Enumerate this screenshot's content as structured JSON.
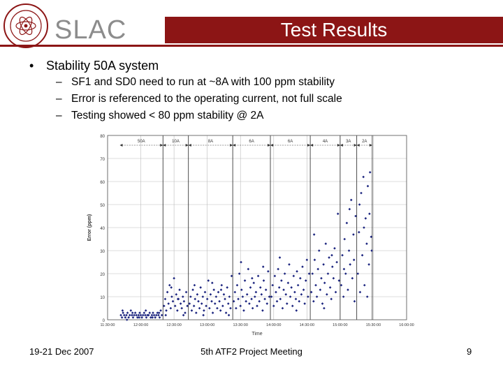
{
  "header": {
    "logo_text": "SLAC",
    "seal_text": "STANFORD LINEAR ACCELERATOR CENTER",
    "title": "Test Results",
    "brand_color": "#8c1515"
  },
  "body": {
    "bullet": "Stability 50A system",
    "subbullets": [
      "SF1 and SD0 need to run at ~8A with 100 ppm stability",
      "Error is referenced to the operating current, not full scale",
      "Testing showed < 80 ppm stability @ 2A"
    ]
  },
  "chart_data": {
    "type": "scatter",
    "xlabel": "Time",
    "ylabel": "Error (ppm)",
    "ylim": [
      0,
      80
    ],
    "xlim": [
      "11:30:00",
      "16:00:00"
    ],
    "yticks": [
      0,
      10,
      20,
      30,
      40,
      50,
      60,
      70,
      80
    ],
    "xticks": [
      "11:30:00",
      "12:00:00",
      "12:30:00",
      "13:00:00",
      "13:30:00",
      "14:00:00",
      "14:30:00",
      "15:00:00",
      "15:30:00",
      "16:00:00"
    ],
    "grid": true,
    "marker_color": "#1a237e",
    "segments": [
      {
        "label": "50A",
        "start": "11:41:00",
        "end": "12:20:00"
      },
      {
        "label": "10A",
        "start": "12:20:00",
        "end": "12:43:00"
      },
      {
        "label": "8A",
        "start": "12:43:00",
        "end": "13:23:00"
      },
      {
        "label": "6A",
        "start": "13:23:00",
        "end": "13:57:00"
      },
      {
        "label": "6A",
        "start": "13:57:00",
        "end": "14:33:00"
      },
      {
        "label": "4A",
        "start": "14:33:00",
        "end": "15:00:00"
      },
      {
        "label": "3A",
        "start": "15:00:00",
        "end": "15:15:00"
      },
      {
        "label": "2A",
        "start": "15:15:00",
        "end": "15:29:00"
      }
    ],
    "points": [
      [
        "11:42:00",
        2
      ],
      [
        "11:43:00",
        1
      ],
      [
        "11:44:00",
        3
      ],
      [
        "11:45:00",
        2
      ],
      [
        "11:46:00",
        1
      ],
      [
        "11:47:00",
        2
      ],
      [
        "11:48:00",
        3
      ],
      [
        "11:49:00",
        1
      ],
      [
        "11:50:00",
        2
      ],
      [
        "11:51:00",
        4
      ],
      [
        "11:52:00",
        2
      ],
      [
        "11:53:00",
        1
      ],
      [
        "11:54:00",
        2
      ],
      [
        "11:55:00",
        3
      ],
      [
        "11:56:00",
        2
      ],
      [
        "11:57:00",
        1
      ],
      [
        "11:58:00",
        2
      ],
      [
        "11:59:00",
        3
      ],
      [
        "12:00:00",
        2
      ],
      [
        "12:01:00",
        1
      ],
      [
        "12:02:00",
        2
      ],
      [
        "12:03:00",
        3
      ],
      [
        "12:04:00",
        2
      ],
      [
        "12:05:00",
        1
      ],
      [
        "12:06:00",
        2
      ],
      [
        "12:07:00",
        2
      ],
      [
        "12:08:00",
        3
      ],
      [
        "12:09:00",
        1
      ],
      [
        "12:10:00",
        2
      ],
      [
        "12:11:00",
        3
      ],
      [
        "12:12:00",
        2
      ],
      [
        "12:13:00",
        1
      ],
      [
        "12:14:00",
        2
      ],
      [
        "12:15:00",
        3
      ],
      [
        "12:16:00",
        2
      ],
      [
        "12:17:00",
        1
      ],
      [
        "12:18:00",
        4
      ],
      [
        "12:19:00",
        2
      ],
      [
        "11:43:30",
        4
      ],
      [
        "11:47:30",
        0
      ],
      [
        "11:52:30",
        3
      ],
      [
        "11:58:30",
        1
      ],
      [
        "12:04:30",
        4
      ],
      [
        "12:10:30",
        1
      ],
      [
        "12:16:30",
        3
      ],
      [
        "12:21:00",
        6
      ],
      [
        "12:22:00",
        9
      ],
      [
        "12:23:00",
        4
      ],
      [
        "12:24:00",
        12
      ],
      [
        "12:25:00",
        7
      ],
      [
        "12:26:00",
        15
      ],
      [
        "12:27:00",
        5
      ],
      [
        "12:28:00",
        10
      ],
      [
        "12:29:00",
        8
      ],
      [
        "12:30:00",
        18
      ],
      [
        "12:31:00",
        6
      ],
      [
        "12:32:00",
        11
      ],
      [
        "12:33:00",
        4
      ],
      [
        "12:34:00",
        9
      ],
      [
        "12:35:00",
        13
      ],
      [
        "12:36:00",
        7
      ],
      [
        "12:37:00",
        5
      ],
      [
        "12:38:00",
        10
      ],
      [
        "12:39:00",
        8
      ],
      [
        "12:40:00",
        3
      ],
      [
        "12:41:00",
        12
      ],
      [
        "12:42:00",
        6
      ],
      [
        "12:22:30",
        2
      ],
      [
        "12:27:30",
        14
      ],
      [
        "12:33:30",
        9
      ],
      [
        "12:38:30",
        2
      ],
      [
        "12:44:00",
        7
      ],
      [
        "12:45:00",
        10
      ],
      [
        "12:46:00",
        4
      ],
      [
        "12:47:00",
        13
      ],
      [
        "12:48:00",
        6
      ],
      [
        "12:49:00",
        9
      ],
      [
        "12:50:00",
        3
      ],
      [
        "12:51:00",
        11
      ],
      [
        "12:52:00",
        8
      ],
      [
        "12:53:00",
        5
      ],
      [
        "12:54:00",
        14
      ],
      [
        "12:55:00",
        7
      ],
      [
        "12:56:00",
        10
      ],
      [
        "12:57:00",
        4
      ],
      [
        "12:58:00",
        12
      ],
      [
        "12:59:00",
        6
      ],
      [
        "13:00:00",
        9
      ],
      [
        "13:01:00",
        17
      ],
      [
        "13:02:00",
        5
      ],
      [
        "13:03:00",
        11
      ],
      [
        "13:04:00",
        8
      ],
      [
        "13:05:00",
        3
      ],
      [
        "13:06:00",
        13
      ],
      [
        "13:07:00",
        7
      ],
      [
        "13:08:00",
        10
      ],
      [
        "13:09:00",
        5
      ],
      [
        "13:10:00",
        12
      ],
      [
        "13:11:00",
        8
      ],
      [
        "13:12:00",
        4
      ],
      [
        "13:13:00",
        15
      ],
      [
        "13:14:00",
        6
      ],
      [
        "13:15:00",
        11
      ],
      [
        "13:16:00",
        9
      ],
      [
        "13:17:00",
        3
      ],
      [
        "13:18:00",
        14
      ],
      [
        "13:19:00",
        7
      ],
      [
        "13:20:00",
        10
      ],
      [
        "13:21:00",
        5
      ],
      [
        "13:22:00",
        19
      ],
      [
        "12:48:30",
        15
      ],
      [
        "12:56:30",
        2
      ],
      [
        "13:04:30",
        16
      ],
      [
        "13:12:30",
        13
      ],
      [
        "13:19:30",
        2
      ],
      [
        "13:24:00",
        8
      ],
      [
        "13:25:00",
        12
      ],
      [
        "13:26:00",
        5
      ],
      [
        "13:27:00",
        15
      ],
      [
        "13:28:00",
        9
      ],
      [
        "13:29:00",
        20
      ],
      [
        "13:30:00",
        6
      ],
      [
        "13:31:00",
        13
      ],
      [
        "13:32:00",
        10
      ],
      [
        "13:33:00",
        4
      ],
      [
        "13:34:00",
        17
      ],
      [
        "13:35:00",
        8
      ],
      [
        "13:36:00",
        11
      ],
      [
        "13:37:00",
        22
      ],
      [
        "13:38:00",
        7
      ],
      [
        "13:39:00",
        14
      ],
      [
        "13:40:00",
        9
      ],
      [
        "13:41:00",
        5
      ],
      [
        "13:42:00",
        16
      ],
      [
        "13:43:00",
        10
      ],
      [
        "13:44:00",
        12
      ],
      [
        "13:45:00",
        6
      ],
      [
        "13:46:00",
        19
      ],
      [
        "13:47:00",
        8
      ],
      [
        "13:48:00",
        14
      ],
      [
        "13:49:00",
        11
      ],
      [
        "13:50:00",
        4
      ],
      [
        "13:51:00",
        17
      ],
      [
        "13:52:00",
        9
      ],
      [
        "13:53:00",
        13
      ],
      [
        "13:54:00",
        7
      ],
      [
        "13:55:00",
        21
      ],
      [
        "13:56:00",
        10
      ],
      [
        "13:30:30",
        25
      ],
      [
        "13:40:30",
        18
      ],
      [
        "13:50:30",
        23
      ],
      [
        "13:58:00",
        10
      ],
      [
        "13:59:00",
        15
      ],
      [
        "14:00:00",
        6
      ],
      [
        "14:01:00",
        19
      ],
      [
        "14:02:00",
        12
      ],
      [
        "14:03:00",
        8
      ],
      [
        "14:04:00",
        22
      ],
      [
        "14:05:00",
        14
      ],
      [
        "14:06:00",
        9
      ],
      [
        "14:07:00",
        17
      ],
      [
        "14:08:00",
        5
      ],
      [
        "14:09:00",
        13
      ],
      [
        "14:10:00",
        20
      ],
      [
        "14:11:00",
        11
      ],
      [
        "14:12:00",
        7
      ],
      [
        "14:13:00",
        16
      ],
      [
        "14:14:00",
        24
      ],
      [
        "14:15:00",
        10
      ],
      [
        "14:16:00",
        14
      ],
      [
        "14:17:00",
        6
      ],
      [
        "14:18:00",
        19
      ],
      [
        "14:19:00",
        12
      ],
      [
        "14:20:00",
        9
      ],
      [
        "14:21:00",
        21
      ],
      [
        "14:22:00",
        15
      ],
      [
        "14:23:00",
        8
      ],
      [
        "14:24:00",
        18
      ],
      [
        "14:25:00",
        11
      ],
      [
        "14:26:00",
        23
      ],
      [
        "14:27:00",
        13
      ],
      [
        "14:28:00",
        7
      ],
      [
        "14:29:00",
        17
      ],
      [
        "14:30:00",
        26
      ],
      [
        "14:31:00",
        10
      ],
      [
        "14:32:00",
        20
      ],
      [
        "14:05:30",
        27
      ],
      [
        "14:20:30",
        4
      ],
      [
        "14:34:00",
        12
      ],
      [
        "14:35:00",
        20
      ],
      [
        "14:36:00",
        8
      ],
      [
        "14:37:00",
        26
      ],
      [
        "14:38:00",
        15
      ],
      [
        "14:39:00",
        10
      ],
      [
        "14:40:00",
        22
      ],
      [
        "14:41:00",
        30
      ],
      [
        "14:42:00",
        13
      ],
      [
        "14:43:00",
        18
      ],
      [
        "14:44:00",
        7
      ],
      [
        "14:45:00",
        24
      ],
      [
        "14:46:00",
        16
      ],
      [
        "14:47:00",
        33
      ],
      [
        "14:48:00",
        11
      ],
      [
        "14:49:00",
        20
      ],
      [
        "14:50:00",
        27
      ],
      [
        "14:51:00",
        14
      ],
      [
        "14:52:00",
        9
      ],
      [
        "14:53:00",
        23
      ],
      [
        "14:54:00",
        18
      ],
      [
        "14:55:00",
        31
      ],
      [
        "14:56:00",
        12
      ],
      [
        "14:57:00",
        25
      ],
      [
        "14:58:00",
        46
      ],
      [
        "14:59:00",
        17
      ],
      [
        "14:36:30",
        37
      ],
      [
        "14:45:30",
        5
      ],
      [
        "14:52:30",
        28
      ],
      [
        "15:01:00",
        15
      ],
      [
        "15:02:00",
        28
      ],
      [
        "15:03:00",
        10
      ],
      [
        "15:04:00",
        35
      ],
      [
        "15:05:00",
        20
      ],
      [
        "15:06:00",
        42
      ],
      [
        "15:07:00",
        13
      ],
      [
        "15:08:00",
        30
      ],
      [
        "15:09:00",
        24
      ],
      [
        "15:10:00",
        52
      ],
      [
        "15:11:00",
        18
      ],
      [
        "15:12:00",
        37
      ],
      [
        "15:13:00",
        8
      ],
      [
        "15:14:00",
        45
      ],
      [
        "15:03:30",
        22
      ],
      [
        "15:08:30",
        48
      ],
      [
        "15:12:30",
        26
      ],
      [
        "15:16:00",
        20
      ],
      [
        "15:17:00",
        38
      ],
      [
        "15:18:00",
        12
      ],
      [
        "15:19:00",
        55
      ],
      [
        "15:20:00",
        28
      ],
      [
        "15:21:00",
        62
      ],
      [
        "15:22:00",
        15
      ],
      [
        "15:23:00",
        44
      ],
      [
        "15:24:00",
        33
      ],
      [
        "15:25:00",
        58
      ],
      [
        "15:26:00",
        24
      ],
      [
        "15:27:00",
        64
      ],
      [
        "15:28:00",
        36
      ],
      [
        "15:17:30",
        50
      ],
      [
        "15:21:30",
        40
      ],
      [
        "15:24:30",
        10
      ],
      [
        "15:26:30",
        46
      ],
      [
        "15:28:30",
        30
      ]
    ]
  },
  "footer": {
    "date": "19-21 Dec 2007",
    "meeting": "5th ATF2 Project Meeting",
    "page": "9"
  }
}
